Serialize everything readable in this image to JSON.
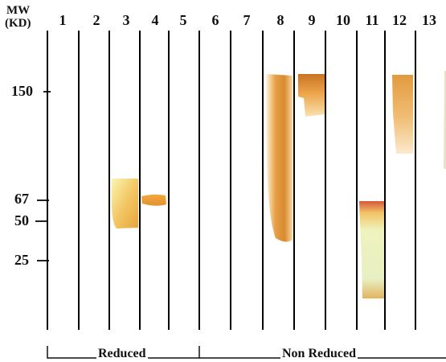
{
  "header": {
    "mw_line1": "MW",
    "mw_line2": "(KD)"
  },
  "lanes": [
    "1",
    "2",
    "3",
    "4",
    "5",
    "6",
    "7",
    "8",
    "9",
    "10",
    "11",
    "12",
    "13"
  ],
  "markers": [
    "150",
    "67",
    "50",
    "25"
  ],
  "groups": {
    "reduced": "Reduced",
    "non_reduced": "Non Reduced"
  }
}
